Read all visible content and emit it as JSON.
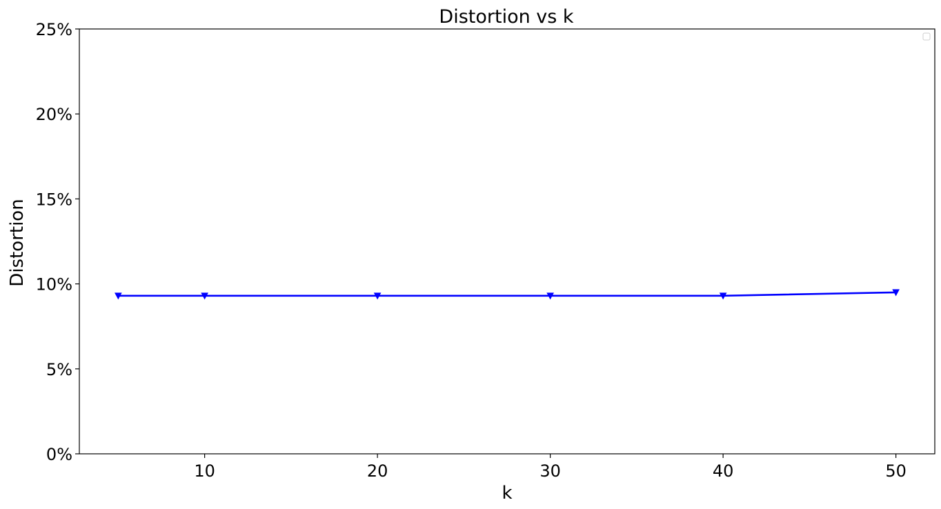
{
  "chart_data": {
    "type": "line",
    "title": "Distortion vs k",
    "xlabel": "k",
    "ylabel": "Distortion",
    "xlim": [
      2.75,
      52.25
    ],
    "ylim": [
      0,
      25
    ],
    "x_ticks": [
      10,
      20,
      30,
      40,
      50
    ],
    "y_ticks": [
      0,
      5,
      10,
      15,
      20,
      25
    ],
    "y_tick_labels": [
      "0%",
      "5%",
      "10%",
      "15%",
      "20%",
      "25%"
    ],
    "grid": false,
    "legend": {
      "placement": "top-right",
      "entries": []
    },
    "series": [
      {
        "x": [
          5,
          10,
          20,
          30,
          40,
          50
        ],
        "y": [
          9.3,
          9.3,
          9.3,
          9.3,
          9.3,
          9.5
        ],
        "color": "#0000ff",
        "marker": "triangle-down"
      }
    ]
  }
}
